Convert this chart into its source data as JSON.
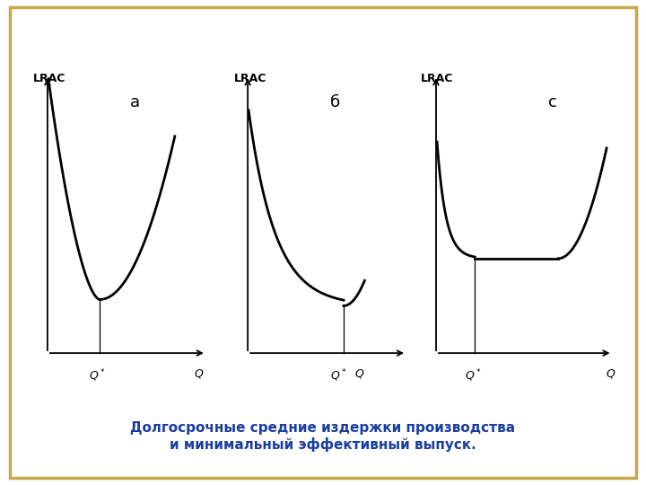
{
  "title": "Долгосрочные средние издержки производства\nи минимальный эффективный выпуск.",
  "title_color": "#1a3ea0",
  "border_color": "#c8a84b",
  "background_color": "#ffffff",
  "panels": [
    {
      "label": "а",
      "lrac_label": "LRAC",
      "type": "u_shape"
    },
    {
      "label": "б",
      "lrac_label": "LRAC",
      "type": "long_decline"
    },
    {
      "label": "с",
      "lrac_label": "LRAC",
      "type": "flat_bottom"
    }
  ]
}
